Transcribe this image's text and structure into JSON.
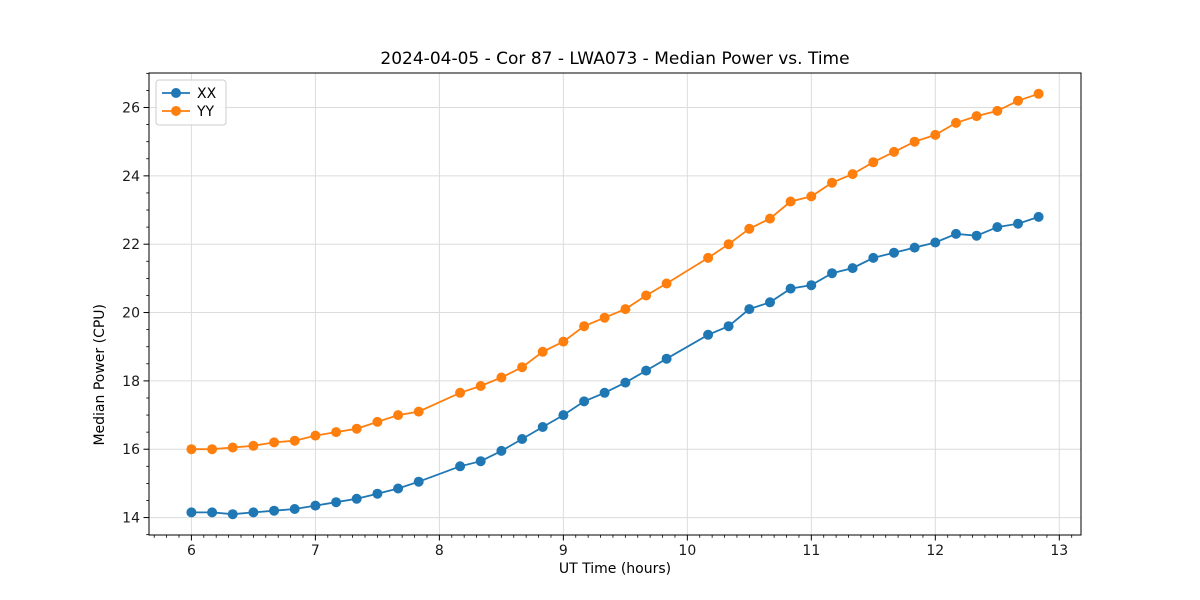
{
  "window": {
    "background": "#ffffff"
  },
  "chart_data": {
    "type": "line",
    "title": "2024-04-05 - Cor 87 - LWA073 - Median Power vs. Time",
    "xlabel": "UT Time (hours)",
    "ylabel": "Median Power (CPU)",
    "xlim": [
      5.658,
      13.175
    ],
    "ylim": [
      13.49,
      27.01
    ],
    "xticks": [
      6,
      7,
      8,
      9,
      10,
      11,
      12,
      13
    ],
    "yticks": [
      14,
      16,
      18,
      20,
      22,
      24,
      26
    ],
    "x_minor_step": 0.1,
    "y_minor_step": 0.5,
    "grid": true,
    "grid_color": "#dcdcdc",
    "legend_position": "upper left",
    "marker": "circle",
    "x": [
      6.0,
      6.167,
      6.333,
      6.5,
      6.667,
      6.833,
      7.0,
      7.167,
      7.333,
      7.5,
      7.667,
      7.833,
      8.167,
      8.333,
      8.5,
      8.667,
      8.833,
      9.0,
      9.167,
      9.333,
      9.5,
      9.667,
      9.833,
      10.167,
      10.333,
      10.5,
      10.667,
      10.833,
      11.0,
      11.167,
      11.333,
      11.5,
      11.667,
      11.833,
      12.0,
      12.167,
      12.333,
      12.5,
      12.667,
      12.833
    ],
    "series": [
      {
        "name": "XX",
        "color": "#1f77b4",
        "values": [
          14.15,
          14.15,
          14.1,
          14.15,
          14.2,
          14.25,
          14.35,
          14.45,
          14.55,
          14.7,
          14.85,
          15.05,
          15.5,
          15.65,
          15.95,
          16.3,
          16.65,
          17.0,
          17.4,
          17.65,
          17.95,
          18.3,
          18.65,
          19.35,
          19.6,
          20.1,
          20.3,
          20.7,
          20.8,
          21.15,
          21.3,
          21.6,
          21.75,
          21.9,
          22.05,
          22.3,
          22.25,
          22.5,
          22.6,
          22.8
        ]
      },
      {
        "name": "YY",
        "color": "#ff7f0e",
        "values": [
          16.0,
          16.0,
          16.05,
          16.1,
          16.2,
          16.25,
          16.4,
          16.5,
          16.6,
          16.8,
          17.0,
          17.1,
          17.65,
          17.85,
          18.1,
          18.4,
          18.85,
          19.15,
          19.6,
          19.85,
          20.1,
          20.5,
          20.85,
          21.6,
          22.0,
          22.45,
          22.75,
          23.25,
          23.4,
          23.8,
          24.05,
          24.4,
          24.7,
          25.0,
          25.2,
          25.55,
          25.75,
          25.9,
          26.2,
          26.4
        ]
      }
    ]
  }
}
